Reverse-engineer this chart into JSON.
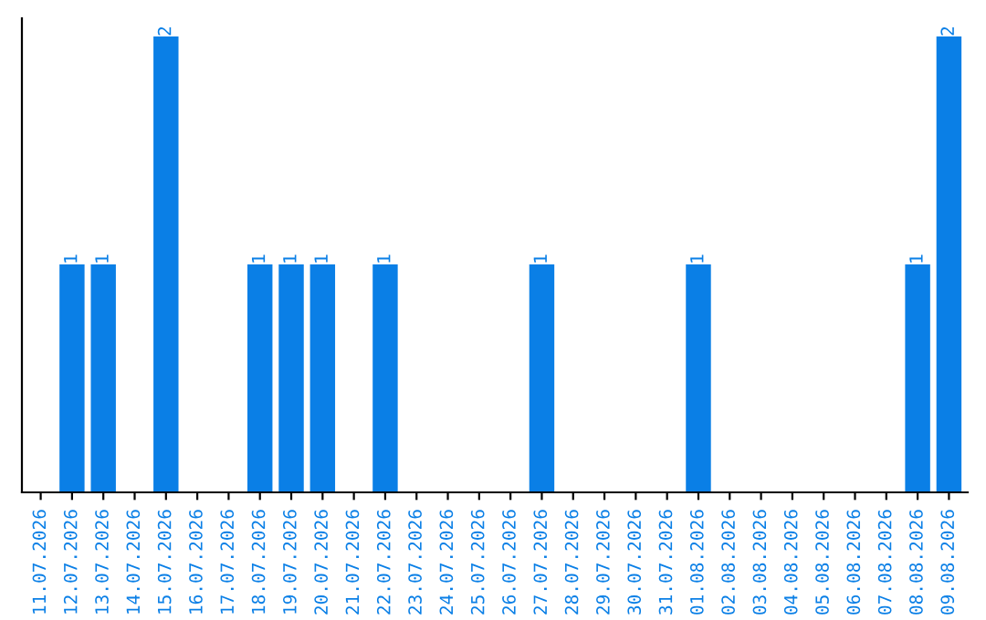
{
  "chart_data": {
    "type": "bar",
    "categories": [
      "11.07.2026",
      "12.07.2026",
      "13.07.2026",
      "14.07.2026",
      "15.07.2026",
      "16.07.2026",
      "17.07.2026",
      "18.07.2026",
      "19.07.2026",
      "20.07.2026",
      "21.07.2026",
      "22.07.2026",
      "23.07.2026",
      "24.07.2026",
      "25.07.2026",
      "26.07.2026",
      "27.07.2026",
      "28.07.2026",
      "29.07.2026",
      "30.07.2026",
      "31.07.2026",
      "01.08.2026",
      "02.08.2026",
      "03.08.2026",
      "04.08.2026",
      "05.08.2026",
      "06.08.2026",
      "07.08.2026",
      "08.08.2026",
      "09.08.2026"
    ],
    "values": [
      0,
      1,
      1,
      0,
      2,
      0,
      0,
      1,
      1,
      1,
      0,
      1,
      0,
      0,
      0,
      0,
      1,
      0,
      0,
      0,
      0,
      1,
      0,
      0,
      0,
      0,
      0,
      0,
      1,
      2
    ],
    "value_labels": [
      null,
      "1",
      "1",
      null,
      "2",
      null,
      null,
      "1",
      "1",
      "1",
      null,
      "1",
      null,
      null,
      null,
      null,
      "1",
      null,
      null,
      null,
      null,
      "1",
      null,
      null,
      null,
      null,
      null,
      null,
      "1",
      "2"
    ],
    "color": "#0a7fe6",
    "tick_labels": "x",
    "grid": false,
    "legend": false
  }
}
